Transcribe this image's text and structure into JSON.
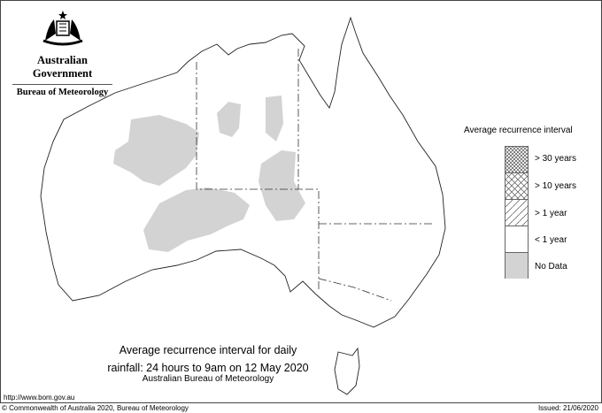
{
  "header": {
    "emblem": "commonwealth-coat-of-arms",
    "government": "Australian Government",
    "agency": "Bureau of Meteorology"
  },
  "legend": {
    "title": "Average recurrence interval",
    "items": [
      {
        "label": "> 30 years",
        "pattern": "dense-crosshatch"
      },
      {
        "label": "> 10 years",
        "pattern": "crosshatch"
      },
      {
        "label": "> 1 year",
        "pattern": "diagonal-hatch"
      },
      {
        "label": "< 1 year",
        "pattern": "white"
      },
      {
        "label": "No Data",
        "pattern": "grey",
        "color": "#d3d3d3"
      }
    ]
  },
  "caption": {
    "line1": "Average recurrence interval for daily",
    "line2": "rainfall: 24 hours to 9am on 12 May 2020",
    "line3": "Australian Bureau of Meteorology"
  },
  "footer": {
    "url": "http://www.bom.gov.au",
    "copyright": "© Commonwealth of Australia 2020, Bureau of Meteorology",
    "issued": "Issued: 21/06/2020"
  }
}
